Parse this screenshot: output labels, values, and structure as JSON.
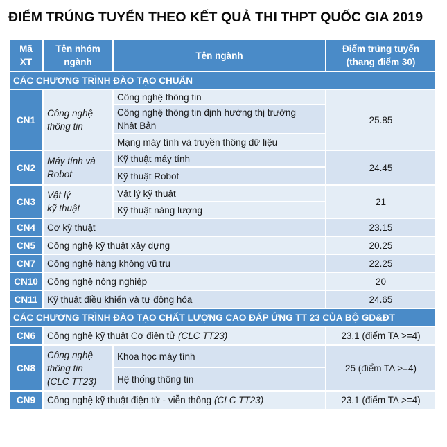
{
  "title": "ĐIỂM TRÚNG TUYỂN THEO KẾT QUẢ THI THPT QUỐC GIA 2019",
  "header": {
    "code": [
      "Mã",
      "XT"
    ],
    "group": [
      "Tên nhóm",
      "ngành"
    ],
    "major": "Tên ngành",
    "score": [
      "Điểm trúng tuyển",
      "(thang điểm 30)"
    ]
  },
  "section1": "CÁC CHƯƠNG TRÌNH ĐÀO TẠO CHUẨN",
  "section2": "CÁC CHƯƠNG TRÌNH ĐÀO TẠO CHẤT LƯỢNG CAO ĐÁP ỨNG TT 23 CỦA BỘ GD&ĐT",
  "cn1": {
    "code": "CN1",
    "group": [
      "Công nghệ",
      "thông tin"
    ],
    "majors": [
      "Công nghệ thông tin",
      "Công nghệ thông tin định hướng thị trường",
      "Nhật Bản",
      "Mạng máy tính và truyền thông dữ liệu"
    ],
    "score": "25.85"
  },
  "cn2": {
    "code": "CN2",
    "group": [
      "Máy tính và",
      "Robot"
    ],
    "majors": [
      "Kỹ thuật máy tính",
      "Kỹ thuật Robot"
    ],
    "score": "24.45"
  },
  "cn3": {
    "code": "CN3",
    "group": [
      "Vật lý",
      "kỹ thuật"
    ],
    "majors": [
      "Vật lý kỹ thuật",
      "Kỹ thuật năng lượng"
    ],
    "score": "21"
  },
  "singles": [
    {
      "code": "CN4",
      "major": "Cơ kỹ thuật",
      "score": "23.15"
    },
    {
      "code": "CN5",
      "major": "Công nghệ kỹ thuật xây dựng",
      "score": "20.25"
    },
    {
      "code": "CN7",
      "major": "Công nghệ hàng không vũ trụ",
      "score": "22.25"
    },
    {
      "code": "CN10",
      "major": "Công nghệ nông nghiệp",
      "score": "20"
    },
    {
      "code": "CN11",
      "major": "Kỹ thuật điều khiển và tự động hóa",
      "score": "24.65"
    }
  ],
  "cn6": {
    "code": "CN6",
    "major": "Công nghệ kỹ thuật Cơ điện tử",
    "note": "(CLC TT23)",
    "score": "23.1 (điểm TA >=4)"
  },
  "cn8": {
    "code": "CN8",
    "group": [
      "Công nghệ",
      "thông tin",
      "(CLC TT23)"
    ],
    "majors": [
      "Khoa học máy tính",
      "Hệ thống thông tin"
    ],
    "score": "25 (điểm TA >=4)"
  },
  "cn9": {
    "code": "CN9",
    "major": "Công nghệ kỹ thuật điện tử - viễn thông",
    "note": "(CLC TT23)",
    "score": "23.1 (điểm TA >=4)"
  },
  "colors": {
    "accent": "#4a8bc8",
    "light": "#d6e2f1",
    "lighter": "#e4edf6"
  }
}
